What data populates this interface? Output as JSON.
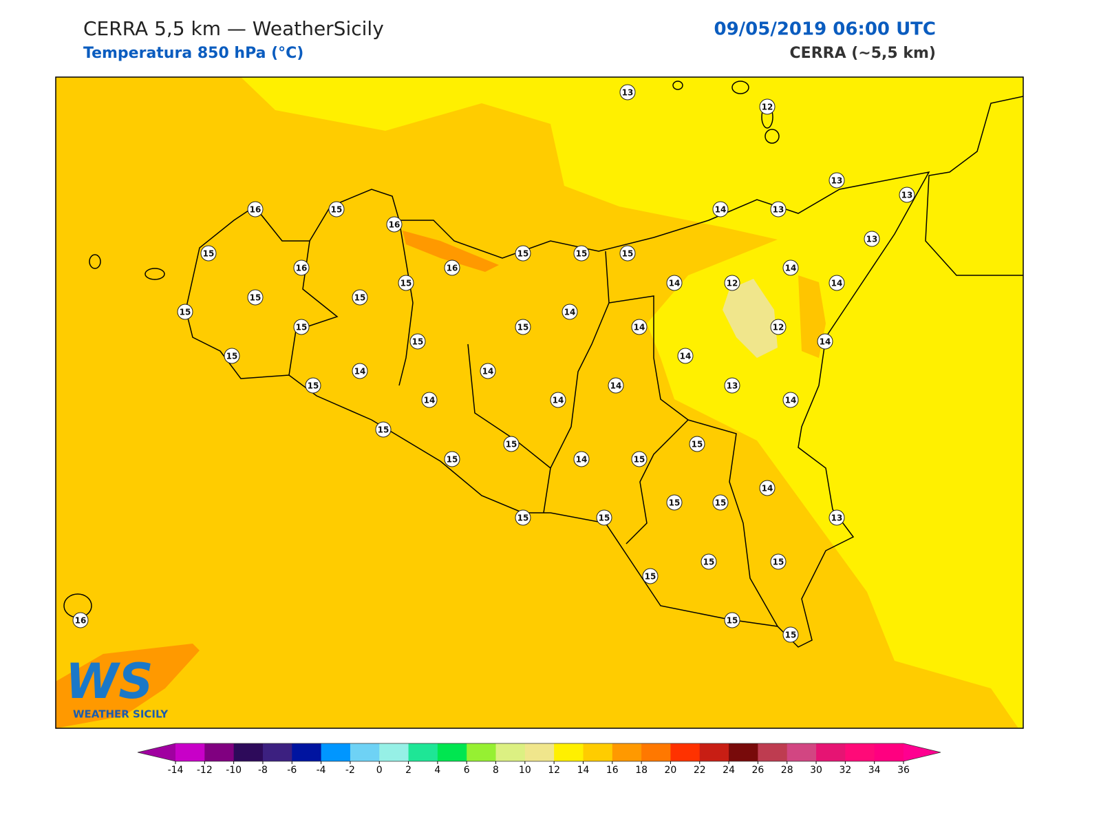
{
  "header": {
    "title": "CERRA 5,5 km — WeatherSicily",
    "subtitle": "Temperatura 850 hPa (°C)",
    "datetime": "09/05/2019 06:00 UTC",
    "source": "CERRA (~5,5 km)"
  },
  "stations": [
    13,
    12,
    13,
    13,
    14,
    13,
    16,
    15,
    16,
    15,
    15,
    15,
    15,
    13,
    16,
    16,
    15,
    14,
    12,
    14,
    14,
    15,
    15,
    14,
    15,
    15,
    15,
    14,
    12,
    14,
    15,
    15,
    14,
    14,
    14,
    15,
    14,
    13,
    14,
    14,
    14,
    15,
    15,
    15,
    15,
    14,
    15,
    14,
    15,
    15,
    15,
    15,
    13,
    15,
    15,
    15,
    15,
    15,
    16
  ],
  "colorbar": {
    "ticks": [
      -14,
      -12,
      -10,
      -8,
      -6,
      -4,
      -2,
      0,
      2,
      4,
      6,
      8,
      10,
      12,
      14,
      16,
      18,
      20,
      22,
      24,
      26,
      28,
      30,
      32,
      34,
      36
    ],
    "colors": [
      "#c800c8",
      "#800080",
      "#2d0a5a",
      "#3c2080",
      "#0014a0",
      "#0096ff",
      "#6ed2f5",
      "#96f0e6",
      "#1ee696",
      "#00e650",
      "#96f032",
      "#dcf082",
      "#f0e68c",
      "#fff000",
      "#ffcc00",
      "#ff9900",
      "#ff7800",
      "#ff3200",
      "#c81e14",
      "#780a0a",
      "#be3c50",
      "#d24682",
      "#e61473",
      "#ff0a78",
      "#ff0080"
    ],
    "under": "#a000a0",
    "over": "#ff0090"
  },
  "logo": {
    "mark": "WS",
    "name": "WEATHER SICILY"
  }
}
